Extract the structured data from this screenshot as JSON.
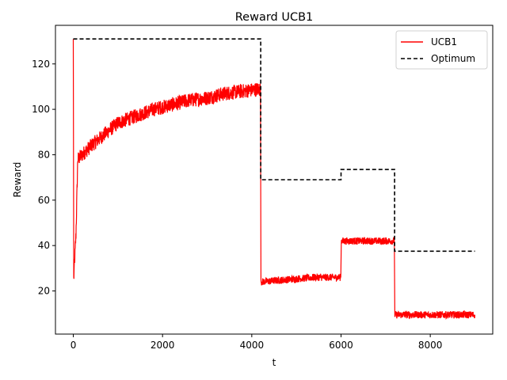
{
  "chart_data": {
    "type": "line",
    "title": "Reward UCB1",
    "xlabel": "t",
    "ylabel": "Reward",
    "xlim": [
      -400,
      9400
    ],
    "ylim": [
      1,
      137
    ],
    "xticks": [
      0,
      2000,
      4000,
      6000,
      8000
    ],
    "yticks": [
      20,
      40,
      60,
      80,
      100,
      120
    ],
    "grid": false,
    "legend_position": "top-right",
    "series": [
      {
        "name": "UCB1",
        "color": "#ff0000",
        "style": "solid",
        "noisy": true,
        "points": [
          {
            "x": 0,
            "y": 131
          },
          {
            "x": 10,
            "y": 25
          },
          {
            "x": 30,
            "y": 33
          },
          {
            "x": 60,
            "y": 45
          },
          {
            "x": 100,
            "y": 78
          },
          {
            "x": 200,
            "y": 80
          },
          {
            "x": 400,
            "y": 84
          },
          {
            "x": 700,
            "y": 89
          },
          {
            "x": 1000,
            "y": 94
          },
          {
            "x": 1400,
            "y": 97
          },
          {
            "x": 1800,
            "y": 100
          },
          {
            "x": 2200,
            "y": 102
          },
          {
            "x": 2600,
            "y": 104
          },
          {
            "x": 3000,
            "y": 105
          },
          {
            "x": 3400,
            "y": 107
          },
          {
            "x": 3800,
            "y": 108
          },
          {
            "x": 4195,
            "y": 109
          },
          {
            "x": 4205,
            "y": 24
          },
          {
            "x": 4800,
            "y": 25
          },
          {
            "x": 5400,
            "y": 26
          },
          {
            "x": 5995,
            "y": 26
          },
          {
            "x": 6005,
            "y": 42
          },
          {
            "x": 6600,
            "y": 42
          },
          {
            "x": 7195,
            "y": 42
          },
          {
            "x": 7205,
            "y": 9.5
          },
          {
            "x": 8000,
            "y": 9.5
          },
          {
            "x": 9000,
            "y": 9.5
          }
        ]
      },
      {
        "name": "Optimum",
        "color": "#000000",
        "style": "dashed",
        "points": [
          {
            "x": 0,
            "y": 131
          },
          {
            "x": 4200,
            "y": 131
          },
          {
            "x": 4200,
            "y": 69
          },
          {
            "x": 6000,
            "y": 69
          },
          {
            "x": 6000,
            "y": 73.5
          },
          {
            "x": 7200,
            "y": 73.5
          },
          {
            "x": 7200,
            "y": 37.5
          },
          {
            "x": 9000,
            "y": 37.5
          }
        ]
      }
    ]
  }
}
